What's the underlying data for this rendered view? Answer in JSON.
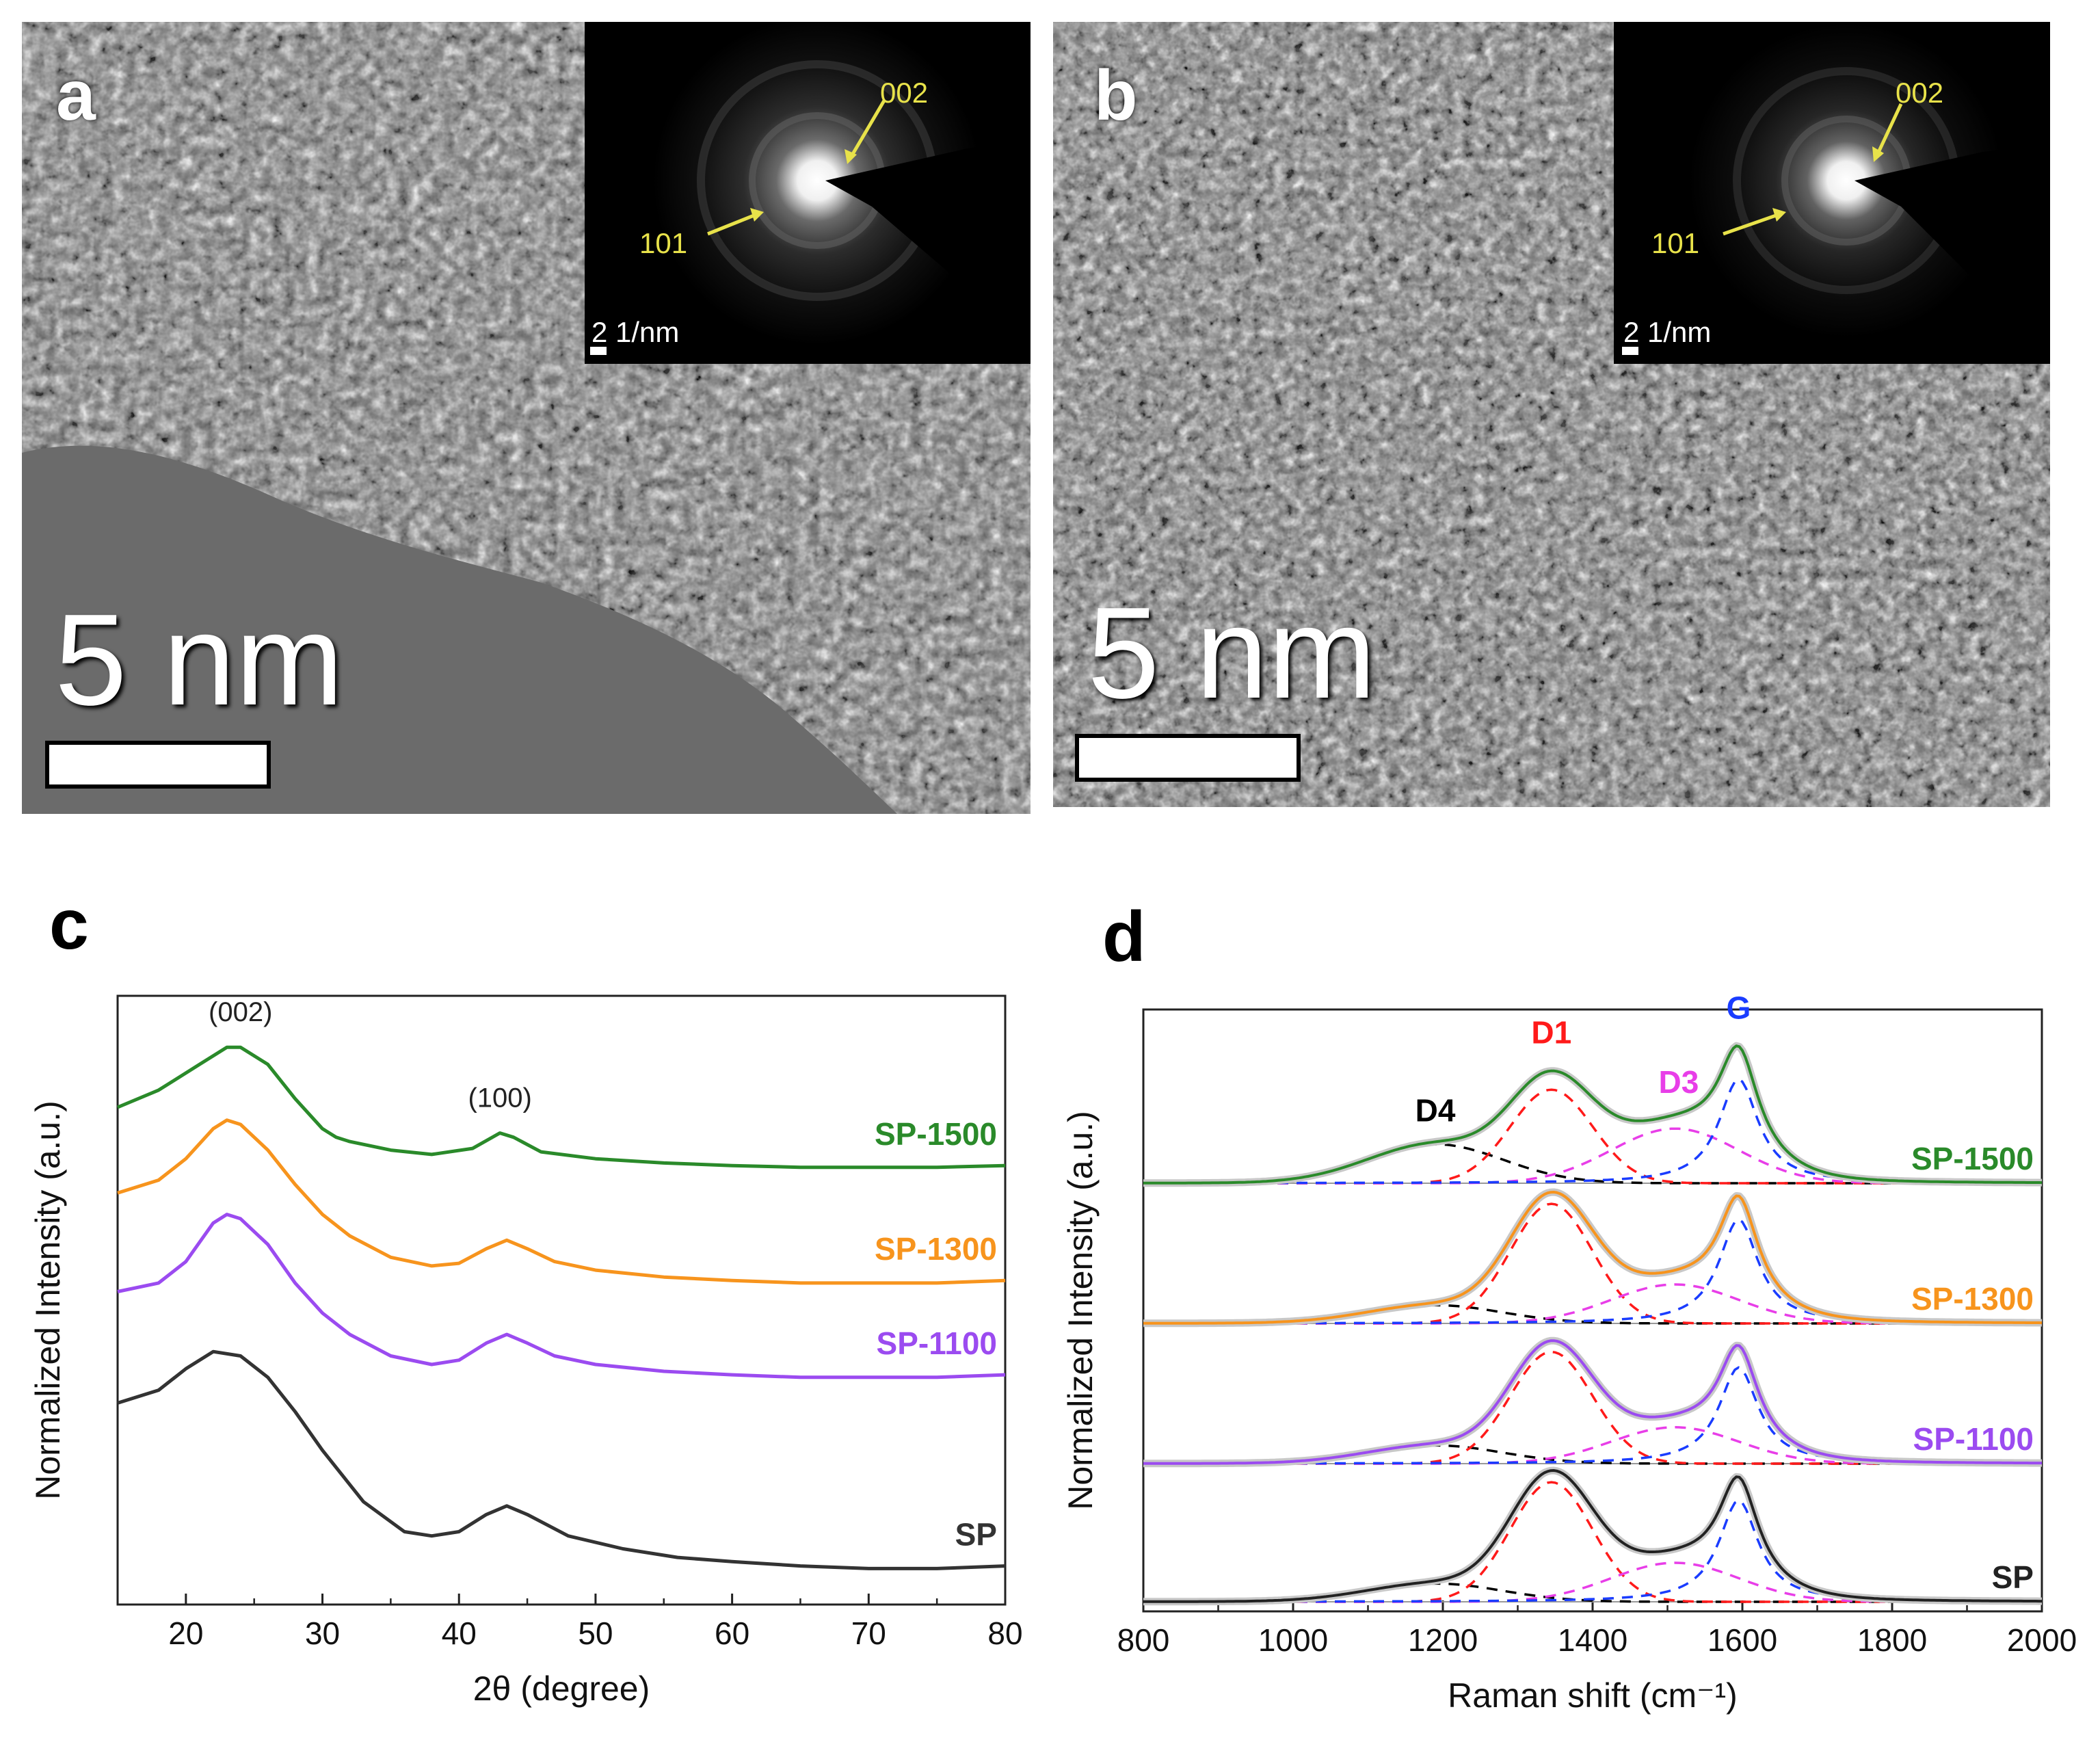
{
  "panels": {
    "a": {
      "letter": "a",
      "scale_label": "5 nm",
      "inset": {
        "peak_002": "002",
        "peak_101": "101",
        "scale": "2 1/nm"
      }
    },
    "b": {
      "letter": "b",
      "scale_label": "5 nm",
      "inset": {
        "peak_002": "002",
        "peak_101": "101",
        "scale": "2 1/nm"
      }
    },
    "c": {
      "letter": "c"
    },
    "d": {
      "letter": "d"
    }
  },
  "chart_data": [
    {
      "id": "c",
      "type": "line",
      "title": "",
      "xlabel": "2θ (degree)",
      "ylabel": "Normalized Intensity (a.u.)",
      "xlim": [
        15,
        80
      ],
      "xticks": [
        20,
        30,
        40,
        50,
        60,
        70,
        80
      ],
      "annotations": [
        {
          "text": "(002)",
          "x": 24
        },
        {
          "text": "(100)",
          "x": 43
        }
      ],
      "series": [
        {
          "name": "SP-1500",
          "color": "#2a8a2a",
          "x": [
            15,
            18,
            21,
            23,
            24,
            26,
            28,
            30,
            31,
            32,
            35,
            38,
            41,
            43,
            44,
            46,
            50,
            55,
            60,
            65,
            70,
            75,
            80
          ],
          "values": [
            4.1,
            4.3,
            4.6,
            4.8,
            4.8,
            4.6,
            4.2,
            3.85,
            3.75,
            3.7,
            3.6,
            3.55,
            3.62,
            3.8,
            3.75,
            3.58,
            3.5,
            3.45,
            3.42,
            3.4,
            3.4,
            3.4,
            3.42
          ]
        },
        {
          "name": "SP-1300",
          "color": "#f7941d",
          "x": [
            15,
            18,
            20,
            22,
            23,
            24,
            26,
            28,
            30,
            32,
            35,
            38,
            40,
            42,
            43.5,
            45,
            47,
            50,
            55,
            60,
            65,
            70,
            75,
            80
          ],
          "values": [
            3.1,
            3.25,
            3.5,
            3.85,
            3.95,
            3.9,
            3.6,
            3.2,
            2.85,
            2.6,
            2.35,
            2.25,
            2.28,
            2.45,
            2.55,
            2.45,
            2.3,
            2.2,
            2.12,
            2.08,
            2.05,
            2.05,
            2.05,
            2.08
          ]
        },
        {
          "name": "SP-1100",
          "color": "#9b4bf0",
          "x": [
            15,
            18,
            20,
            22,
            23,
            24,
            26,
            28,
            30,
            32,
            35,
            38,
            40,
            42,
            43.5,
            45,
            47,
            50,
            55,
            60,
            65,
            70,
            75,
            80
          ],
          "values": [
            1.95,
            2.05,
            2.3,
            2.75,
            2.85,
            2.8,
            2.5,
            2.05,
            1.7,
            1.45,
            1.2,
            1.1,
            1.15,
            1.35,
            1.45,
            1.35,
            1.2,
            1.1,
            1.02,
            0.98,
            0.95,
            0.95,
            0.95,
            0.98
          ]
        },
        {
          "name": "SP",
          "color": "#333333",
          "x": [
            15,
            18,
            20,
            22,
            24,
            26,
            28,
            30,
            33,
            36,
            38,
            40,
            42,
            43.5,
            45,
            48,
            52,
            56,
            60,
            65,
            70,
            75,
            80
          ],
          "values": [
            0.65,
            0.8,
            1.05,
            1.25,
            1.2,
            0.95,
            0.55,
            0.1,
            -0.5,
            -0.85,
            -0.9,
            -0.85,
            -0.65,
            -0.55,
            -0.65,
            -0.9,
            -1.05,
            -1.15,
            -1.2,
            -1.25,
            -1.28,
            -1.28,
            -1.25
          ]
        }
      ]
    },
    {
      "id": "d",
      "type": "line",
      "title": "",
      "xlabel": "Raman shift (cm⁻¹)",
      "ylabel": "Normalized Intensity (a.u.)",
      "xlim": [
        800,
        2000
      ],
      "xticks": [
        800,
        1000,
        1200,
        1400,
        1600,
        1800,
        2000
      ],
      "peak_labels": [
        {
          "text": "D4",
          "color": "#000000",
          "x": 1190
        },
        {
          "text": "D1",
          "color": "#ff1a1a",
          "x": 1345
        },
        {
          "text": "D3",
          "color": "#e83ee8",
          "x": 1515
        },
        {
          "text": "G",
          "color": "#1a3cff",
          "x": 1595
        }
      ],
      "peaks": [
        {
          "name": "D4",
          "position": 1190,
          "width": 90,
          "color": "#000000"
        },
        {
          "name": "D1",
          "position": 1345,
          "width": 55,
          "color": "#ff1a1a"
        },
        {
          "name": "D3",
          "position": 1510,
          "width": 85,
          "color": "#e83ee8"
        },
        {
          "name": "G",
          "position": 1595,
          "width": 32,
          "color": "#1a3cff"
        }
      ],
      "series": [
        {
          "name": "SP-1500",
          "color": "#2a8a2a",
          "amplitudes": {
            "D4": 0.3,
            "D1": 0.72,
            "D3": 0.42,
            "G": 0.8
          }
        },
        {
          "name": "SP-1300",
          "color": "#f7941d",
          "amplitudes": {
            "D4": 0.14,
            "D1": 0.92,
            "D3": 0.3,
            "G": 0.8
          }
        },
        {
          "name": "SP-1100",
          "color": "#9b4bf0",
          "amplitudes": {
            "D4": 0.14,
            "D1": 0.86,
            "D3": 0.28,
            "G": 0.74
          }
        },
        {
          "name": "SP",
          "color": "#222222",
          "amplitudes": {
            "D4": 0.14,
            "D1": 0.92,
            "D3": 0.3,
            "G": 0.78
          }
        }
      ]
    }
  ]
}
